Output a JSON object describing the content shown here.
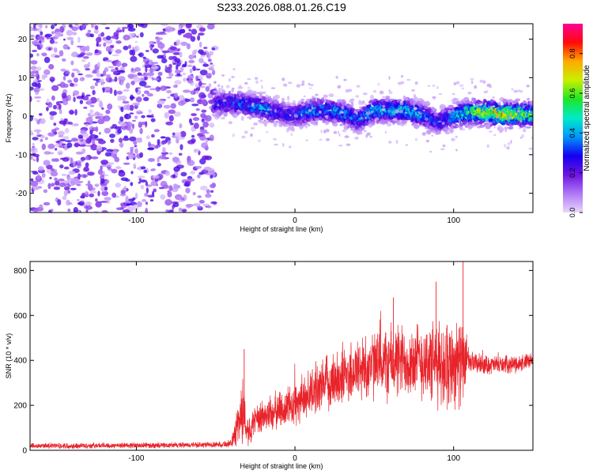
{
  "chart_data": [
    {
      "type": "heatmap",
      "title": "S233.2026.088.01.26.C19",
      "xlabel": "Height of straight line (km)",
      "ylabel": "Frequency (Hz)",
      "xlim": [
        -167,
        150
      ],
      "ylim": [
        -25,
        24
      ],
      "xticks": [
        -100,
        0,
        100
      ],
      "yticks": [
        20,
        10,
        0,
        -10,
        -20
      ],
      "noise_region_x": [
        -167,
        -50
      ],
      "signal_trace": {
        "x": [
          -50,
          -40,
          -30,
          -20,
          -10,
          0,
          10,
          20,
          30,
          40,
          50,
          60,
          70,
          80,
          90,
          100,
          110,
          120,
          130,
          140,
          150
        ],
        "frequency": [
          3,
          3.5,
          3,
          2,
          1,
          0,
          1.5,
          1.5,
          1,
          -1,
          1.5,
          1.5,
          1.5,
          0.5,
          -1.5,
          0,
          1,
          1,
          0.5,
          0.5,
          0.5
        ],
        "peak_amplitude": [
          0.3,
          0.35,
          0.4,
          0.45,
          0.3,
          0.35,
          0.45,
          0.4,
          0.45,
          0.35,
          0.5,
          0.45,
          0.5,
          0.45,
          0.3,
          0.45,
          0.6,
          0.75,
          0.8,
          0.7,
          0.65
        ]
      },
      "colorbar": {
        "label": "Normalized spectral amplitude",
        "range": [
          0,
          0.95
        ],
        "ticks": [
          "0.0",
          "0.2",
          "0.4",
          "0.6",
          "0.8"
        ]
      }
    },
    {
      "type": "line",
      "xlabel": "Height of straight line (km)",
      "ylabel": "SNR (10 * v/v)",
      "xlim": [
        -167,
        150
      ],
      "ylim": [
        0,
        840
      ],
      "xticks": [
        -100,
        0,
        100
      ],
      "yticks": [
        0,
        200,
        400,
        600,
        800
      ],
      "series": [
        {
          "name": "SNR",
          "color": "#e8232a",
          "x": [
            -167,
            -140,
            -110,
            -80,
            -50,
            -40,
            -36,
            -33,
            -30,
            -20,
            -10,
            0,
            10,
            20,
            30,
            40,
            50,
            60,
            70,
            80,
            90,
            100,
            105,
            110,
            120,
            130,
            140,
            150
          ],
          "y": [
            20,
            20,
            22,
            22,
            25,
            30,
            120,
            180,
            90,
            150,
            180,
            200,
            260,
            300,
            330,
            360,
            380,
            390,
            400,
            400,
            380,
            390,
            390,
            390,
            380,
            380,
            385,
            395
          ],
          "spread": [
            15,
            15,
            15,
            15,
            15,
            20,
            120,
            180,
            80,
            90,
            100,
            110,
            120,
            140,
            160,
            170,
            180,
            200,
            190,
            200,
            220,
            230,
            220,
            60,
            50,
            45,
            45,
            45
          ],
          "spikes": [
            {
              "x": -32,
              "y": 450
            },
            {
              "x": 62,
              "y": 680
            },
            {
              "x": 89,
              "y": 750
            },
            {
              "x": 106,
              "y": 840
            }
          ]
        }
      ]
    }
  ]
}
